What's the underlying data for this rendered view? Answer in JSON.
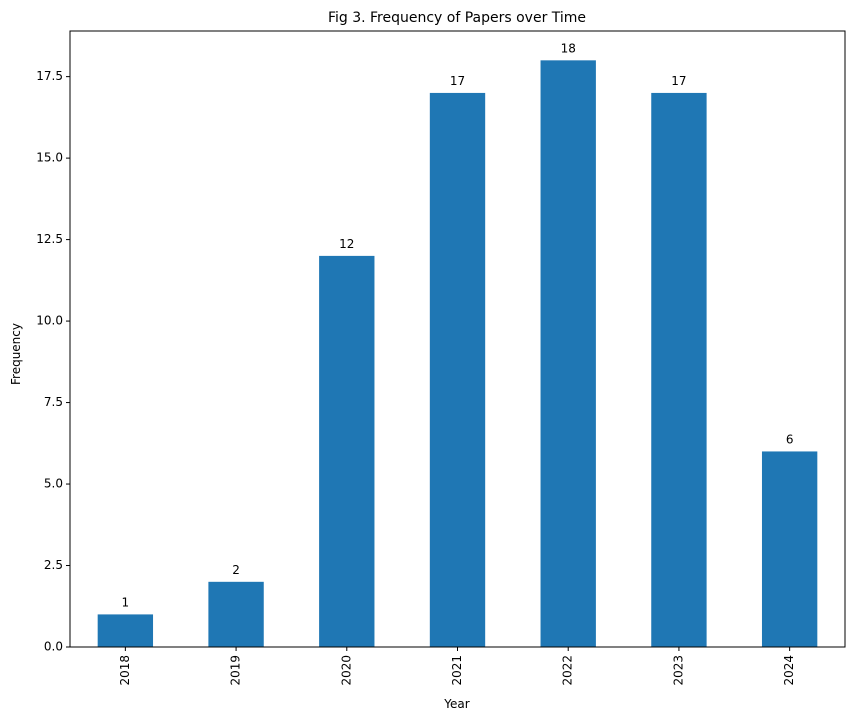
{
  "chart_data": {
    "type": "bar",
    "title": "Fig 3. Frequency of Papers over Time",
    "xlabel": "Year",
    "ylabel": "Frequency",
    "categories": [
      "2018",
      "2019",
      "2020",
      "2021",
      "2022",
      "2023",
      "2024"
    ],
    "values": [
      1,
      2,
      12,
      17,
      18,
      17,
      6
    ],
    "ylim": [
      0,
      18.9
    ],
    "yticks": [
      0.0,
      2.5,
      5.0,
      7.5,
      10.0,
      12.5,
      15.0,
      17.5
    ],
    "ytick_labels": [
      "0.0",
      "2.5",
      "5.0",
      "7.5",
      "10.0",
      "12.5",
      "15.0",
      "17.5"
    ],
    "data_labels": [
      "1",
      "2",
      "12",
      "17",
      "18",
      "17",
      "6"
    ],
    "x_tick_rotation": "vertical",
    "grid": false,
    "legend": "none",
    "bar_color": "#1f77b4"
  }
}
